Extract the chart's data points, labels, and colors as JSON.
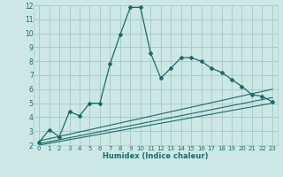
{
  "xlabel": "Humidex (Indice chaleur)",
  "background_color": "#cce8e4",
  "grid_color": "#aaccca",
  "line_color": "#1a6b6b",
  "xlim": [
    -0.5,
    23.5
  ],
  "ylim": [
    2,
    12
  ],
  "yticks": [
    2,
    3,
    4,
    5,
    6,
    7,
    8,
    9,
    10,
    11,
    12
  ],
  "xticks": [
    0,
    1,
    2,
    3,
    4,
    5,
    6,
    7,
    8,
    9,
    10,
    11,
    12,
    13,
    14,
    15,
    16,
    17,
    18,
    19,
    20,
    21,
    22,
    23
  ],
  "series1_x": [
    0,
    1,
    2,
    3,
    4,
    5,
    6,
    7,
    8,
    9,
    10,
    11,
    12,
    13,
    14,
    15,
    16,
    17,
    18,
    19,
    20,
    21,
    22,
    23
  ],
  "series1_y": [
    2.2,
    3.1,
    2.6,
    4.4,
    4.1,
    5.0,
    5.0,
    7.8,
    9.9,
    11.85,
    11.85,
    8.6,
    6.8,
    7.5,
    8.25,
    8.25,
    8.0,
    7.5,
    7.2,
    6.7,
    6.2,
    5.6,
    5.5,
    5.1
  ],
  "series2_x": [
    0,
    23
  ],
  "series2_y": [
    2.3,
    6.0
  ],
  "series3_x": [
    0,
    23
  ],
  "series3_y": [
    2.1,
    5.4
  ],
  "series4_x": [
    0,
    23
  ],
  "series4_y": [
    2.0,
    5.0
  ]
}
